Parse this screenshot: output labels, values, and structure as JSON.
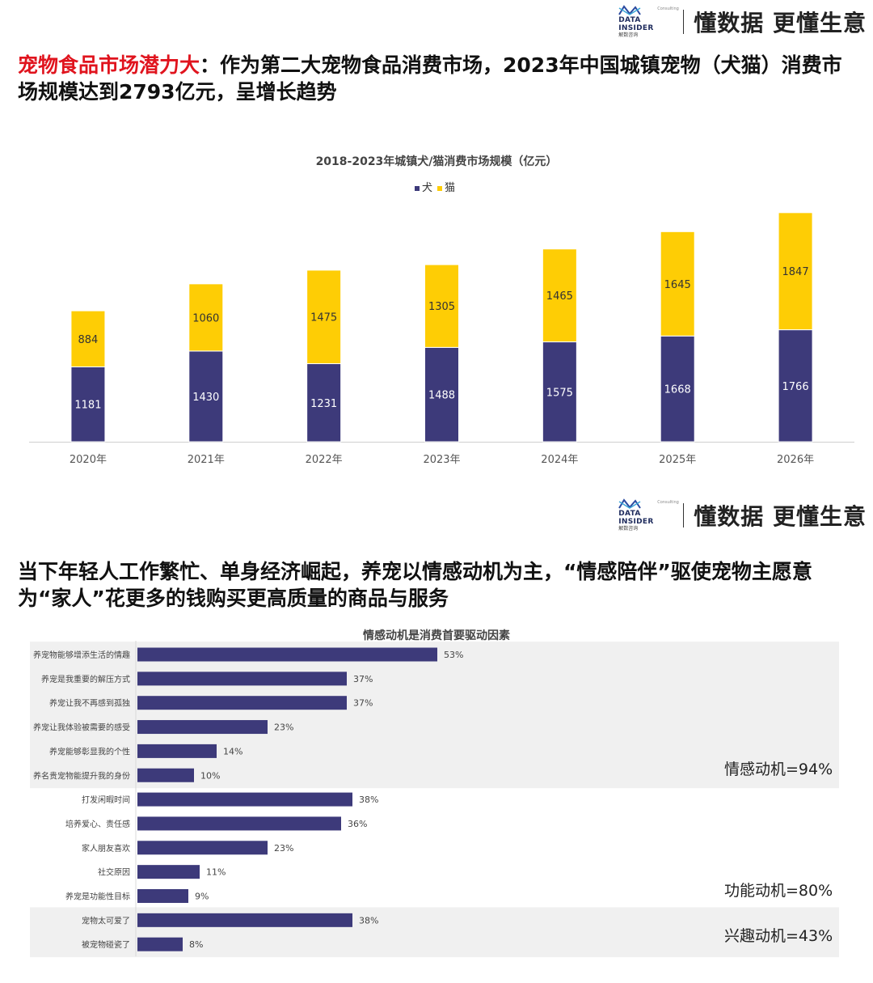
{
  "brand": {
    "logo_en": "DATA INSIDER",
    "logo_consult": "Consulting",
    "logo_cn": "解数咨询",
    "slogan": "懂数据 更懂生意"
  },
  "section1": {
    "headline_red": "宠物食品市场潜力大",
    "headline_rest": "：作为第二大宠物食品消费市场，2023年中国城镇宠物（犬猫）消费市场规模达到2793亿元，呈增长趋势"
  },
  "section2": {
    "headline": "当下年轻人工作繁忙、单身经济崛起，养宠以情感动机为主，“情感陪伴”驱使宠物主愿意为“家人”花更多的钱购买更高质量的商品与服务"
  },
  "colors": {
    "dog": "#3d3a7a",
    "cat": "#fecd05",
    "bar": "#3d3a7a",
    "panel": "#f0f0f0"
  },
  "chart_data": [
    {
      "type": "bar",
      "stacked": true,
      "title": "2018-2023年城镇犬/猫消费市场规模（亿元）",
      "categories": [
        "2020年",
        "2021年",
        "2022年",
        "2023年",
        "2024年",
        "2025年",
        "2026年"
      ],
      "series": [
        {
          "name": "犬",
          "values": [
            1181,
            1430,
            1231,
            1488,
            1575,
            1668,
            1766
          ]
        },
        {
          "name": "猫",
          "values": [
            884,
            1060,
            1475,
            1305,
            1465,
            1645,
            1847
          ]
        }
      ],
      "ylim": [
        0,
        3700
      ],
      "legend": "top-center",
      "grid": false,
      "data_labels": true
    },
    {
      "type": "bar",
      "orientation": "horizontal",
      "title": "情感动机是消费首要驱动因素",
      "categories": [
        "养宠物能够增添生活的情趣",
        "养宠是我重要的解压方式",
        "养宠让我不再感到孤独",
        "养宠让我体验被需要的感受",
        "养宠能够彰显我的个性",
        "养名贵宠物能提升我的身份",
        "打发闲暇时间",
        "培养爱心、责任感",
        "家人朋友喜欢",
        "社交原因",
        "养宠是功能性目标",
        "宠物太可爱了",
        "被宠物碰瓷了"
      ],
      "values": [
        53,
        37,
        37,
        23,
        14,
        10,
        38,
        36,
        23,
        11,
        9,
        38,
        8
      ],
      "value_suffix": "%",
      "xlim": [
        0,
        100
      ],
      "groups": [
        {
          "label": "情感动机=94%",
          "count": 6,
          "shaded": true
        },
        {
          "label": "功能动机=80%",
          "count": 5,
          "shaded": false
        },
        {
          "label": "兴趣动机=43%",
          "count": 2,
          "shaded": true
        }
      ],
      "grid": false
    }
  ]
}
